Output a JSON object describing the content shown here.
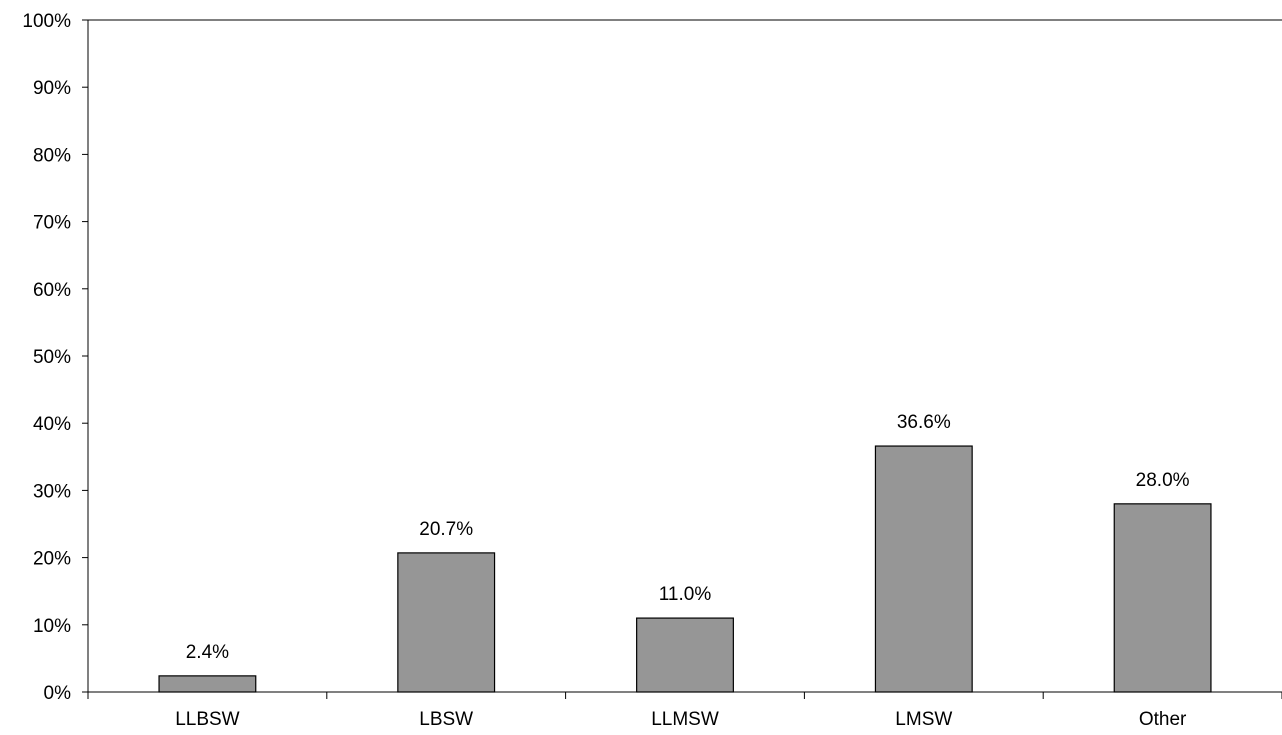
{
  "chart_data": {
    "type": "bar",
    "title": "",
    "xlabel": "",
    "ylabel": "",
    "categories": [
      "LLBSW",
      "LBSW",
      "LLMSW",
      "LMSW",
      "Other"
    ],
    "values": [
      2.4,
      20.7,
      11.0,
      36.6,
      28.0
    ],
    "data_labels": [
      "2.4%",
      "20.7%",
      "11.0%",
      "36.6%",
      "28.0%"
    ],
    "ylim": [
      0,
      100
    ],
    "y_ticks": [
      0,
      10,
      20,
      30,
      40,
      50,
      60,
      70,
      80,
      90,
      100
    ],
    "y_tick_labels": [
      "0%",
      "10%",
      "20%",
      "30%",
      "40%",
      "50%",
      "60%",
      "70%",
      "80%",
      "90%",
      "100%"
    ],
    "grid": false,
    "legend": "none",
    "colors": {
      "bar_fill": "#969696",
      "bar_stroke": "#000000",
      "axis": "#000000",
      "background": "#ffffff"
    }
  }
}
